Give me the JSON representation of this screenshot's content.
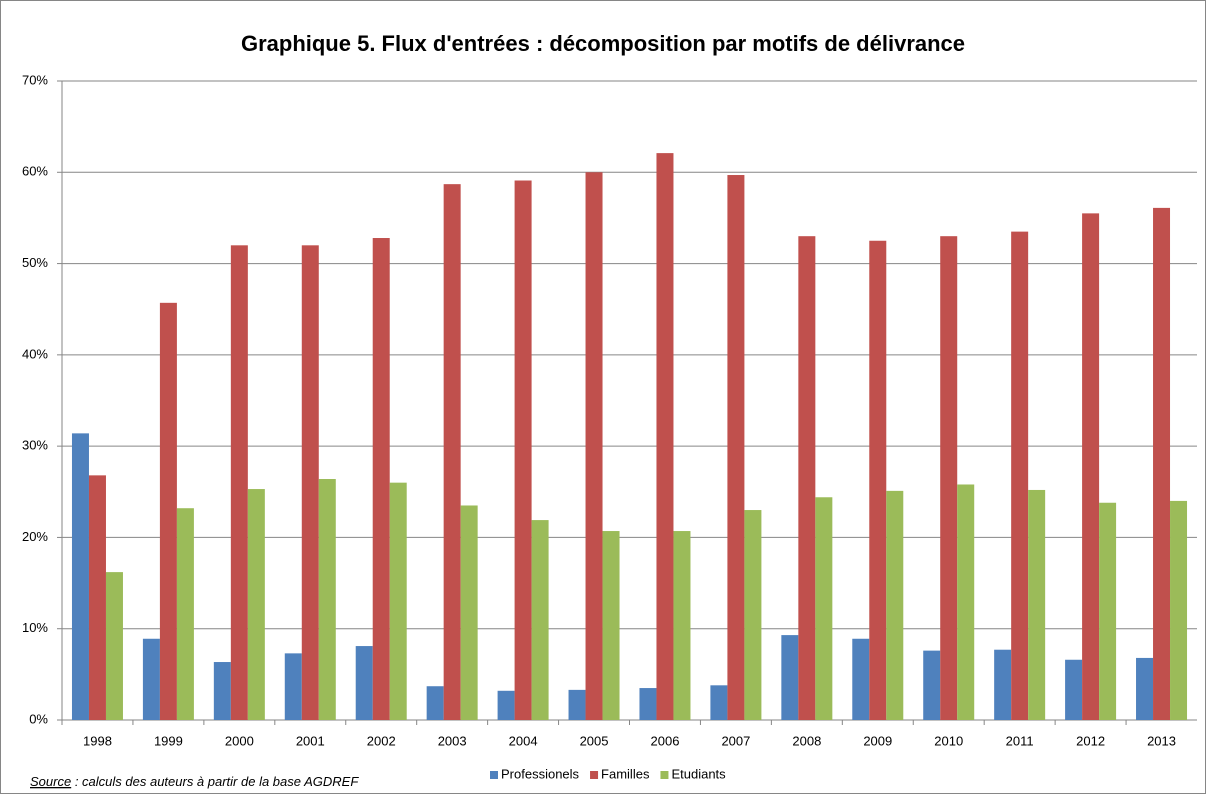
{
  "chart_data": {
    "type": "bar",
    "title": "Graphique 5. Flux d'entrées : décomposition par motifs de délivrance",
    "categories": [
      "1998",
      "1999",
      "2000",
      "2001",
      "2002",
      "2003",
      "2004",
      "2005",
      "2006",
      "2007",
      "2008",
      "2009",
      "2010",
      "2011",
      "2012",
      "2013"
    ],
    "series": [
      {
        "name": "Professionels",
        "color": "#4f81bd",
        "values": [
          31.4,
          8.9,
          6.35,
          7.3,
          8.1,
          3.7,
          3.2,
          3.3,
          3.5,
          3.8,
          9.3,
          8.9,
          7.6,
          7.7,
          6.6,
          6.8
        ]
      },
      {
        "name": "Familles",
        "color": "#c0504d",
        "values": [
          26.8,
          45.7,
          52.0,
          52.0,
          52.8,
          58.7,
          59.1,
          60.0,
          62.1,
          59.7,
          53.0,
          52.5,
          53.0,
          53.5,
          55.5,
          56.1
        ]
      },
      {
        "name": "Etudiants",
        "color": "#9bbb59",
        "values": [
          16.2,
          23.2,
          25.3,
          26.4,
          26.0,
          23.5,
          21.9,
          20.7,
          20.7,
          23.0,
          24.4,
          25.1,
          25.8,
          25.2,
          23.8,
          24.0
        ]
      }
    ],
    "ylim": [
      0,
      70
    ],
    "yticks": [
      {
        "value": 0,
        "label": "0%"
      },
      {
        "value": 10,
        "label": "10%"
      },
      {
        "value": 20,
        "label": "20%"
      },
      {
        "value": 30,
        "label": "30%"
      },
      {
        "value": 40,
        "label": "40%"
      },
      {
        "value": 50,
        "label": "50%"
      },
      {
        "value": 60,
        "label": "60%"
      },
      {
        "value": 70,
        "label": "70%"
      }
    ],
    "grid": true,
    "legend": "bottom",
    "source_label": "Source",
    "source_text": " : calculs des auteurs à partir de la base AGDREF"
  }
}
